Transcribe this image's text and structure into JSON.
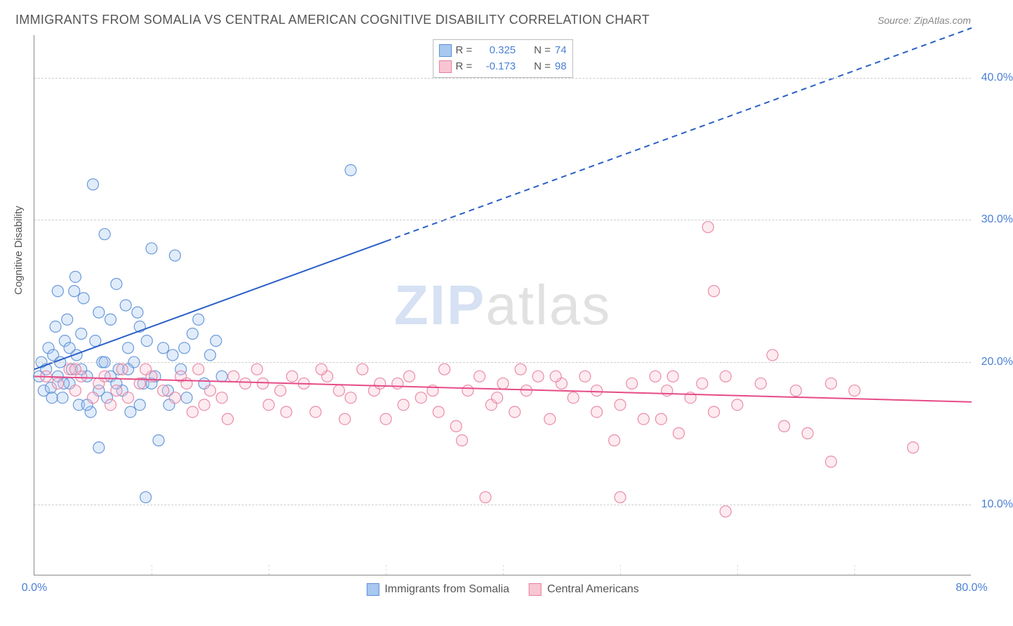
{
  "title": "IMMIGRANTS FROM SOMALIA VS CENTRAL AMERICAN COGNITIVE DISABILITY CORRELATION CHART",
  "source": "Source: ZipAtlas.com",
  "watermark_zip": "ZIP",
  "watermark_atlas": "atlas",
  "ylabel": "Cognitive Disability",
  "chart": {
    "type": "scatter",
    "xlim": [
      0,
      80
    ],
    "ylim": [
      5,
      43
    ],
    "xtick_major": [
      0,
      80
    ],
    "xtick_minor": [
      10,
      20,
      30,
      40,
      50,
      60,
      70
    ],
    "ytick_major": [
      10,
      20,
      30,
      40
    ],
    "x_format_suffix": "%",
    "y_format_suffix": "%",
    "background_color": "#ffffff",
    "grid_color": "#cccccc",
    "axis_color": "#888888",
    "tick_label_color": "#4a7fd6",
    "marker_radius": 8,
    "marker_fill_opacity": 0.35,
    "marker_stroke_opacity": 0.9,
    "marker_stroke_width": 1.2,
    "trend_line_width": 2,
    "series": [
      {
        "id": "somalia",
        "label": "Immigrants from Somalia",
        "color_fill": "#a9c8f0",
        "color_stroke": "#5b8fd6",
        "trend_color": "#2a5fc8",
        "r_label": "R =",
        "r_value": "0.325",
        "n_label": "N =",
        "n_value": "74",
        "trend": {
          "x1": 0,
          "y1": 19.5,
          "x2_solid": 30,
          "y2_solid": 28.5,
          "x2_dash": 80,
          "y2_dash": 43.5
        },
        "points": [
          [
            0.4,
            19.0
          ],
          [
            0.6,
            20.0
          ],
          [
            0.8,
            18.0
          ],
          [
            1.0,
            19.5
          ],
          [
            1.2,
            21.0
          ],
          [
            1.4,
            18.2
          ],
          [
            1.6,
            20.5
          ],
          [
            1.8,
            22.5
          ],
          [
            2.0,
            19.0
          ],
          [
            2.2,
            20.0
          ],
          [
            2.4,
            17.5
          ],
          [
            2.6,
            21.5
          ],
          [
            2.8,
            23.0
          ],
          [
            3.0,
            18.5
          ],
          [
            3.2,
            19.5
          ],
          [
            3.4,
            25.0
          ],
          [
            3.6,
            20.5
          ],
          [
            3.8,
            17.0
          ],
          [
            4.0,
            22.0
          ],
          [
            4.2,
            24.5
          ],
          [
            4.5,
            19.0
          ],
          [
            4.8,
            16.5
          ],
          [
            5.0,
            32.5
          ],
          [
            5.2,
            21.5
          ],
          [
            5.5,
            18.0
          ],
          [
            5.8,
            20.0
          ],
          [
            6.0,
            29.0
          ],
          [
            6.2,
            17.5
          ],
          [
            6.5,
            23.0
          ],
          [
            7.0,
            25.5
          ],
          [
            7.2,
            19.5
          ],
          [
            7.5,
            18.0
          ],
          [
            7.8,
            24.0
          ],
          [
            8.0,
            21.0
          ],
          [
            8.2,
            16.5
          ],
          [
            8.5,
            20.0
          ],
          [
            9.0,
            22.5
          ],
          [
            9.3,
            18.5
          ],
          [
            9.6,
            21.5
          ],
          [
            10.0,
            28.0
          ],
          [
            10.3,
            19.0
          ],
          [
            10.6,
            14.5
          ],
          [
            11.0,
            21.0
          ],
          [
            11.4,
            18.0
          ],
          [
            11.8,
            20.5
          ],
          [
            12.0,
            27.5
          ],
          [
            12.5,
            19.5
          ],
          [
            13.0,
            17.5
          ],
          [
            13.5,
            22.0
          ],
          [
            14.0,
            23.0
          ],
          [
            14.5,
            18.5
          ],
          [
            15.0,
            20.5
          ],
          [
            15.5,
            21.5
          ],
          [
            16.0,
            19.0
          ],
          [
            9.5,
            10.5
          ],
          [
            5.5,
            14.0
          ],
          [
            2.0,
            25.0
          ],
          [
            3.5,
            26.0
          ],
          [
            4.0,
            19.5
          ],
          [
            6.5,
            19.0
          ],
          [
            8.8,
            23.5
          ],
          [
            11.5,
            17.0
          ],
          [
            12.8,
            21.0
          ],
          [
            27.0,
            33.5
          ],
          [
            1.5,
            17.5
          ],
          [
            2.5,
            18.5
          ],
          [
            3.0,
            21.0
          ],
          [
            4.5,
            17.0
          ],
          [
            5.5,
            23.5
          ],
          [
            6.0,
            20.0
          ],
          [
            7.0,
            18.5
          ],
          [
            8.0,
            19.5
          ],
          [
            9.0,
            17.0
          ],
          [
            10.0,
            18.5
          ]
        ]
      },
      {
        "id": "central",
        "label": "Central Americans",
        "color_fill": "#f8c6d3",
        "color_stroke": "#e87fa0",
        "trend_color": "#e64b86",
        "r_label": "R =",
        "r_value": "-0.173",
        "n_label": "N =",
        "n_value": "98",
        "trend": {
          "x1": 0,
          "y1": 19.0,
          "x2_solid": 80,
          "y2_solid": 17.2,
          "x2_dash": 80,
          "y2_dash": 17.2
        },
        "points": [
          [
            1.0,
            19.0
          ],
          [
            2.0,
            18.5
          ],
          [
            3.0,
            19.5
          ],
          [
            3.5,
            18.0
          ],
          [
            4.0,
            19.0
          ],
          [
            5.0,
            17.5
          ],
          [
            5.5,
            18.5
          ],
          [
            6.0,
            19.0
          ],
          [
            7.0,
            18.0
          ],
          [
            7.5,
            19.5
          ],
          [
            8.0,
            17.5
          ],
          [
            9.0,
            18.5
          ],
          [
            10.0,
            19.0
          ],
          [
            11.0,
            18.0
          ],
          [
            12.0,
            17.5
          ],
          [
            12.5,
            19.0
          ],
          [
            13.0,
            18.5
          ],
          [
            14.0,
            19.5
          ],
          [
            15.0,
            18.0
          ],
          [
            16.0,
            17.5
          ],
          [
            17.0,
            19.0
          ],
          [
            18.0,
            18.5
          ],
          [
            19.0,
            19.5
          ],
          [
            20.0,
            17.0
          ],
          [
            21.0,
            18.0
          ],
          [
            22.0,
            19.0
          ],
          [
            23.0,
            18.5
          ],
          [
            24.0,
            16.5
          ],
          [
            25.0,
            19.0
          ],
          [
            26.0,
            18.0
          ],
          [
            27.0,
            17.5
          ],
          [
            28.0,
            19.5
          ],
          [
            29.0,
            18.0
          ],
          [
            30.0,
            16.0
          ],
          [
            31.0,
            18.5
          ],
          [
            32.0,
            19.0
          ],
          [
            33.0,
            17.5
          ],
          [
            34.0,
            18.0
          ],
          [
            35.0,
            19.5
          ],
          [
            36.0,
            15.5
          ],
          [
            37.0,
            18.0
          ],
          [
            38.0,
            19.0
          ],
          [
            39.0,
            17.0
          ],
          [
            40.0,
            18.5
          ],
          [
            41.0,
            16.5
          ],
          [
            42.0,
            18.0
          ],
          [
            43.0,
            19.0
          ],
          [
            44.0,
            16.0
          ],
          [
            45.0,
            18.5
          ],
          [
            46.0,
            17.5
          ],
          [
            47.0,
            19.0
          ],
          [
            48.0,
            16.5
          ],
          [
            38.5,
            10.5
          ],
          [
            50.0,
            17.0
          ],
          [
            51.0,
            18.5
          ],
          [
            52.0,
            16.0
          ],
          [
            53.0,
            19.0
          ],
          [
            54.0,
            18.0
          ],
          [
            55.0,
            15.0
          ],
          [
            56.0,
            17.5
          ],
          [
            50.0,
            10.5
          ],
          [
            57.0,
            18.5
          ],
          [
            58.0,
            16.5
          ],
          [
            59.0,
            19.0
          ],
          [
            60.0,
            17.0
          ],
          [
            62.0,
            18.5
          ],
          [
            58.0,
            25.0
          ],
          [
            64.0,
            15.5
          ],
          [
            65.0,
            18.0
          ],
          [
            57.5,
            29.5
          ],
          [
            59.0,
            9.5
          ],
          [
            68.0,
            18.5
          ],
          [
            63.0,
            20.5
          ],
          [
            66.0,
            15.0
          ],
          [
            68.0,
            13.0
          ],
          [
            70.0,
            18.0
          ],
          [
            75.0,
            14.0
          ],
          [
            13.5,
            16.5
          ],
          [
            16.5,
            16.0
          ],
          [
            21.5,
            16.5
          ],
          [
            26.5,
            16.0
          ],
          [
            31.5,
            17.0
          ],
          [
            36.5,
            14.5
          ],
          [
            41.5,
            19.5
          ],
          [
            3.5,
            19.5
          ],
          [
            6.5,
            17.0
          ],
          [
            9.5,
            19.5
          ],
          [
            14.5,
            17.0
          ],
          [
            19.5,
            18.5
          ],
          [
            24.5,
            19.5
          ],
          [
            29.5,
            18.5
          ],
          [
            34.5,
            16.5
          ],
          [
            39.5,
            17.5
          ],
          [
            44.5,
            19.0
          ],
          [
            49.5,
            14.5
          ],
          [
            54.5,
            19.0
          ],
          [
            48.0,
            18.0
          ],
          [
            53.5,
            16.0
          ]
        ]
      }
    ]
  },
  "legend_top": {
    "rows": 2
  },
  "legend_bottom": {
    "items": 2
  }
}
